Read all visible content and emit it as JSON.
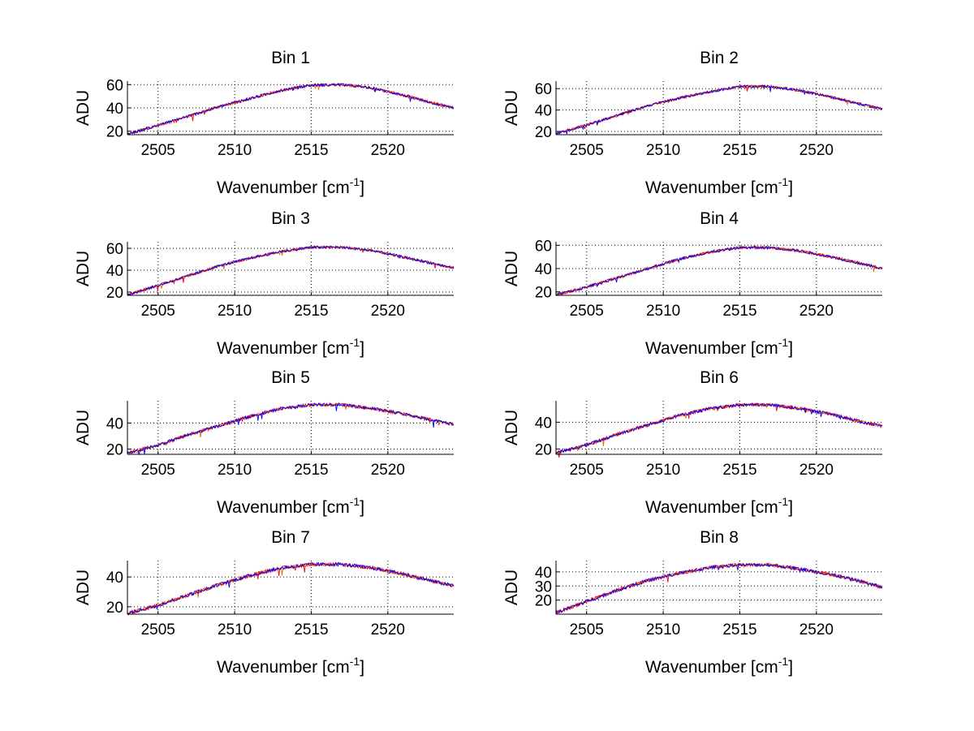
{
  "figure": {
    "background": "#ffffff",
    "series_colors": [
      "#0000ff",
      "#ff0000",
      "#e07000"
    ]
  },
  "chart_data": [
    {
      "type": "line",
      "title": "Bin 1",
      "xlabel": "Wavenumber [cm",
      "xlabel_sup": "-1",
      "xlabel_end": "]",
      "ylabel": "ADU",
      "xlim": [
        2503,
        2524.3
      ],
      "ylim": [
        17,
        63
      ],
      "xticks": [
        2505,
        2510,
        2515,
        2520
      ],
      "yticks": [
        20,
        40,
        60
      ],
      "grid": true,
      "x": [
        2503,
        2505,
        2507,
        2509,
        2511,
        2513,
        2515,
        2517,
        2519,
        2521,
        2523,
        2524.3
      ],
      "y": [
        17.5,
        25,
        33,
        41,
        48,
        55,
        59.5,
        60,
        57,
        51,
        44,
        40
      ]
    },
    {
      "type": "line",
      "title": "Bin 2",
      "xlabel": "Wavenumber [cm",
      "xlabel_sup": "-1",
      "xlabel_end": "]",
      "ylabel": "ADU",
      "xlim": [
        2503,
        2524.3
      ],
      "ylim": [
        17,
        67
      ],
      "xticks": [
        2505,
        2510,
        2515,
        2520
      ],
      "yticks": [
        20,
        40,
        60
      ],
      "grid": true,
      "x": [
        2503,
        2505,
        2507,
        2509,
        2511,
        2513,
        2515,
        2517,
        2519,
        2521,
        2523,
        2524.3
      ],
      "y": [
        18,
        26,
        35,
        44,
        51,
        57,
        62,
        62,
        58,
        52,
        45,
        41
      ]
    },
    {
      "type": "line",
      "title": "Bin 3",
      "xlabel": "Wavenumber [cm",
      "xlabel_sup": "-1",
      "xlabel_end": "]",
      "ylabel": "ADU",
      "xlim": [
        2503,
        2524.3
      ],
      "ylim": [
        17,
        66
      ],
      "xticks": [
        2505,
        2510,
        2515,
        2520
      ],
      "yticks": [
        20,
        40,
        60
      ],
      "grid": true,
      "x": [
        2503,
        2505,
        2507,
        2509,
        2511,
        2513,
        2515,
        2517,
        2519,
        2521,
        2523,
        2524.3
      ],
      "y": [
        17.5,
        26,
        35,
        44,
        51,
        57,
        61,
        61,
        58,
        52,
        46,
        42
      ]
    },
    {
      "type": "line",
      "title": "Bin 4",
      "xlabel": "Wavenumber [cm",
      "xlabel_sup": "-1",
      "xlabel_end": "]",
      "ylabel": "ADU",
      "xlim": [
        2503,
        2524.3
      ],
      "ylim": [
        17,
        63
      ],
      "xticks": [
        2505,
        2510,
        2515,
        2520
      ],
      "yticks": [
        20,
        40,
        60
      ],
      "grid": true,
      "x": [
        2503,
        2505,
        2507,
        2509,
        2511,
        2513,
        2515,
        2517,
        2519,
        2521,
        2523,
        2524.3
      ],
      "y": [
        17.5,
        24,
        32,
        40,
        48,
        54,
        58,
        58,
        55,
        50,
        44,
        40
      ]
    },
    {
      "type": "line",
      "title": "Bin 5",
      "xlabel": "Wavenumber [cm",
      "xlabel_sup": "-1",
      "xlabel_end": "]",
      "ylabel": "ADU",
      "xlim": [
        2503,
        2524.3
      ],
      "ylim": [
        16,
        57
      ],
      "xticks": [
        2505,
        2510,
        2515,
        2520
      ],
      "yticks": [
        20,
        40
      ],
      "grid": true,
      "x": [
        2503,
        2505,
        2507,
        2509,
        2511,
        2513,
        2515,
        2517,
        2519,
        2521,
        2523,
        2524.3
      ],
      "y": [
        17,
        23,
        31,
        38,
        45,
        51,
        54,
        54,
        51,
        47,
        42,
        39
      ]
    },
    {
      "type": "line",
      "title": "Bin 6",
      "xlabel": "Wavenumber [cm",
      "xlabel_sup": "-1",
      "xlabel_end": "]",
      "ylabel": "ADU",
      "xlim": [
        2503,
        2524.3
      ],
      "ylim": [
        16,
        56
      ],
      "xticks": [
        2505,
        2510,
        2515,
        2520
      ],
      "yticks": [
        20,
        40
      ],
      "grid": true,
      "x": [
        2503,
        2505,
        2507,
        2509,
        2511,
        2513,
        2515,
        2517,
        2519,
        2521,
        2523,
        2524.3
      ],
      "y": [
        17,
        23,
        31,
        38,
        45,
        50,
        53,
        53,
        50,
        46,
        40,
        37
      ]
    },
    {
      "type": "line",
      "title": "Bin 7",
      "xlabel": "Wavenumber [cm",
      "xlabel_sup": "-1",
      "xlabel_end": "]",
      "ylabel": "ADU",
      "xlim": [
        2503,
        2524.3
      ],
      "ylim": [
        15,
        51
      ],
      "xticks": [
        2505,
        2510,
        2515,
        2520
      ],
      "yticks": [
        20,
        40
      ],
      "grid": true,
      "x": [
        2503,
        2505,
        2507,
        2509,
        2511,
        2513,
        2515,
        2517,
        2519,
        2521,
        2523,
        2524.3
      ],
      "y": [
        15.5,
        21,
        28,
        35,
        41,
        46,
        48.5,
        48.5,
        46,
        42,
        37,
        34
      ]
    },
    {
      "type": "line",
      "title": "Bin 8",
      "xlabel": "Wavenumber [cm",
      "xlabel_sup": "-1",
      "xlabel_end": "]",
      "ylabel": "ADU",
      "xlim": [
        2503,
        2524.3
      ],
      "ylim": [
        10,
        48
      ],
      "xticks": [
        2505,
        2510,
        2515,
        2520
      ],
      "yticks": [
        20,
        30,
        40
      ],
      "grid": true,
      "x": [
        2503,
        2505,
        2507,
        2509,
        2511,
        2513,
        2515,
        2517,
        2519,
        2521,
        2523,
        2524.3
      ],
      "y": [
        11,
        19,
        27,
        34,
        39,
        43,
        45,
        45,
        42,
        38,
        33,
        29
      ]
    }
  ]
}
